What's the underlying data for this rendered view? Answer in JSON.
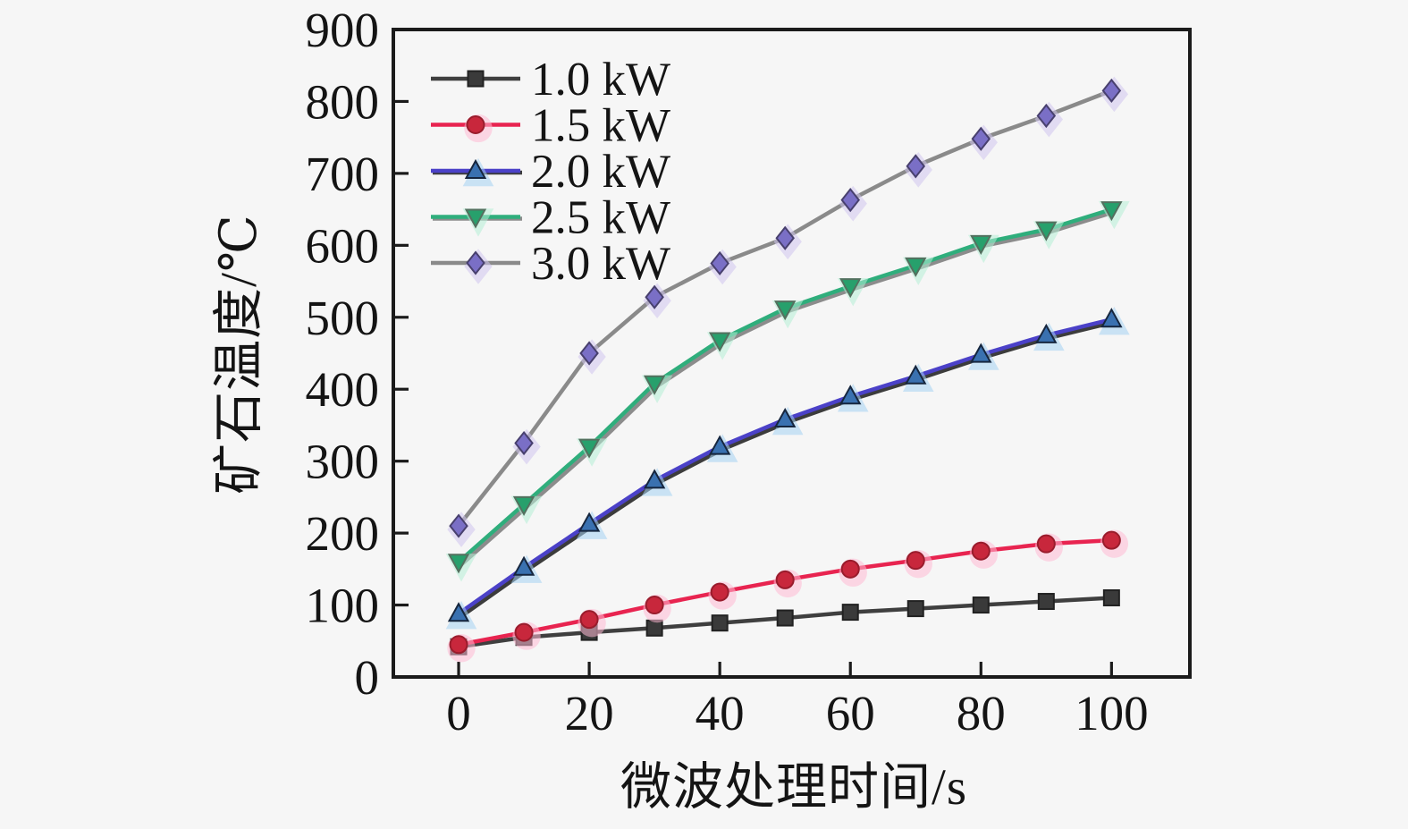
{
  "figure": {
    "background": "#f6f6f6",
    "frame_color": "#1b1b1b",
    "text_color": "#141414"
  },
  "chart_data": {
    "type": "line",
    "title": "",
    "xlabel": "微波处理时间/s",
    "ylabel": "矿石温度/℃",
    "x": [
      0,
      10,
      20,
      30,
      40,
      50,
      60,
      70,
      80,
      90,
      100
    ],
    "xlim": [
      -10,
      112
    ],
    "ylim": [
      0,
      900
    ],
    "xticks": [
      0,
      20,
      40,
      60,
      80,
      100
    ],
    "yticks": [
      0,
      100,
      200,
      300,
      400,
      500,
      600,
      700,
      800,
      900
    ],
    "grid": false,
    "legend_position": "top-left",
    "series": [
      {
        "name": "1.0 kW",
        "values": [
          42,
          55,
          62,
          68,
          75,
          82,
          90,
          95,
          100,
          105,
          110
        ],
        "line_color": "#3f3f3f",
        "marker": "square",
        "marker_color": "#3a3a3a",
        "marker_edge": "#222222",
        "halo": null,
        "shadow": null
      },
      {
        "name": "1.5 kW",
        "values": [
          45,
          62,
          80,
          100,
          118,
          135,
          150,
          162,
          175,
          185,
          190
        ],
        "line_color": "#e82450",
        "marker": "circle",
        "marker_color": "#c8273c",
        "marker_edge": "#991c2c",
        "halo": "#ffb9d4",
        "shadow": null
      },
      {
        "name": "2.0 kW",
        "values": [
          88,
          152,
          213,
          273,
          320,
          358,
          390,
          418,
          448,
          475,
          497
        ],
        "line_color": "#4b41c8",
        "marker": "triangle-up",
        "marker_color": "#3a71b0",
        "marker_edge": "#16263e",
        "halo": "#a4d2f2",
        "shadow": "#3c3c3c"
      },
      {
        "name": "2.5 kW",
        "values": [
          160,
          240,
          320,
          408,
          468,
          512,
          543,
          572,
          603,
          622,
          650
        ],
        "line_color": "#2fae7c",
        "marker": "triangle-down",
        "marker_color": "#27a06c",
        "marker_edge": "#54705f",
        "halo": "#b4efd6",
        "shadow": "#8c8c8c"
      },
      {
        "name": "3.0 kW",
        "values": [
          210,
          325,
          450,
          528,
          575,
          610,
          663,
          710,
          748,
          780,
          815
        ],
        "line_color": "#8a8a8a",
        "marker": "diamond",
        "marker_color": "#7a6fc6",
        "marker_edge": "#48406e",
        "halo": "#cfc4ee",
        "shadow": null
      }
    ]
  }
}
